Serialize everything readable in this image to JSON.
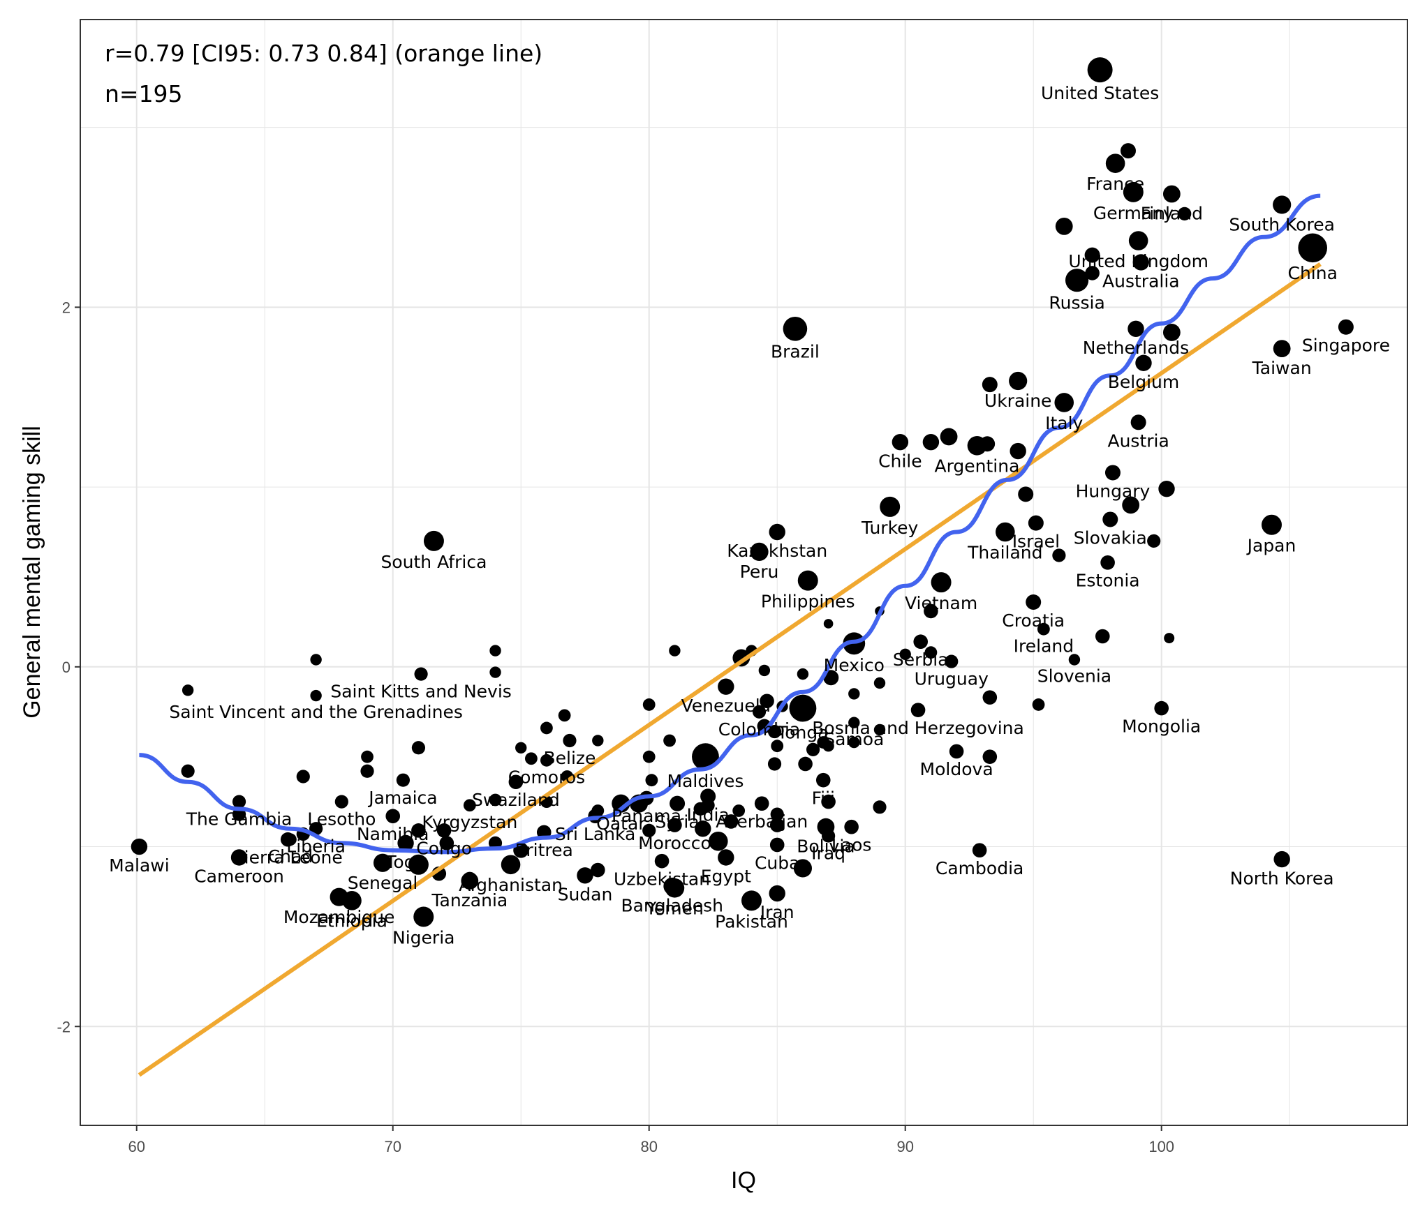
{
  "chart_data": {
    "type": "scatter",
    "title": "",
    "xlabel": "IQ",
    "ylabel": "General mental gaming skill",
    "xlim": [
      57.8,
      109.6
    ],
    "ylim": [
      -2.55,
      3.6
    ],
    "xticks": [
      60,
      70,
      80,
      90,
      100
    ],
    "yticks": [
      -2,
      0,
      2
    ],
    "xtick_labels": [
      "60",
      "70",
      "80",
      "90",
      "100"
    ],
    "ytick_labels": [
      "-2",
      "0",
      "2"
    ],
    "grid": true,
    "annotations": [
      "r=0.79 [CI95: 0.73 0.84] (orange line)",
      "n=195"
    ],
    "colors": {
      "points": "#000000",
      "linear_fit": "#f0a830",
      "loess_fit": "#4263ee",
      "grid": "#e5e5e5",
      "panel_border": "#333333"
    },
    "linear_fit": {
      "x": [
        60.1,
        106.2
      ],
      "y": [
        -2.27,
        2.24
      ]
    },
    "loess_fit": {
      "x": [
        60.1,
        62,
        64,
        66,
        68,
        70,
        72,
        74,
        76,
        78,
        80,
        82,
        84,
        86,
        88,
        90,
        92,
        94,
        96,
        98,
        100,
        102,
        104,
        106.2
      ],
      "y": [
        -0.49,
        -0.64,
        -0.79,
        -0.9,
        -0.98,
        -1.02,
        -1.03,
        -1.01,
        -0.95,
        -0.84,
        -0.72,
        -0.57,
        -0.38,
        -0.14,
        0.14,
        0.45,
        0.75,
        1.04,
        1.33,
        1.62,
        1.91,
        2.16,
        2.39,
        2.62
      ]
    },
    "points": [
      {
        "label": "United States",
        "x": 97.6,
        "y": 3.32,
        "s": 1.0
      },
      {
        "label": "France",
        "x": 98.2,
        "y": 2.8,
        "s": 0.7
      },
      {
        "label": "",
        "x": 98.7,
        "y": 2.87,
        "s": 0.5
      },
      {
        "label": "Germany",
        "x": 98.9,
        "y": 2.64,
        "s": 0.75
      },
      {
        "label": "Finland",
        "x": 100.4,
        "y": 2.63,
        "s": 0.6
      },
      {
        "label": "",
        "x": 100.9,
        "y": 2.52,
        "s": 0.4
      },
      {
        "label": "",
        "x": 96.2,
        "y": 2.45,
        "s": 0.6
      },
      {
        "label": "United Kingdom",
        "x": 99.1,
        "y": 2.37,
        "s": 0.7
      },
      {
        "label": "",
        "x": 97.3,
        "y": 2.29,
        "s": 0.5
      },
      {
        "label": "Australia",
        "x": 99.2,
        "y": 2.25,
        "s": 0.55
      },
      {
        "label": "",
        "x": 97.3,
        "y": 2.19,
        "s": 0.45
      },
      {
        "label": "Russia",
        "x": 96.7,
        "y": 2.15,
        "s": 0.9
      },
      {
        "label": "South Korea",
        "x": 104.7,
        "y": 2.57,
        "s": 0.65
      },
      {
        "label": "China",
        "x": 105.9,
        "y": 2.33,
        "s": 1.2
      },
      {
        "label": "Brazil",
        "x": 85.7,
        "y": 1.88,
        "s": 0.95
      },
      {
        "label": "Netherlands",
        "x": 99.0,
        "y": 1.88,
        "s": 0.55
      },
      {
        "label": "",
        "x": 100.4,
        "y": 1.86,
        "s": 0.6
      },
      {
        "label": "Singapore",
        "x": 107.2,
        "y": 1.89,
        "s": 0.5
      },
      {
        "label": "Taiwan",
        "x": 104.7,
        "y": 1.77,
        "s": 0.6
      },
      {
        "label": "Belgium",
        "x": 99.3,
        "y": 1.69,
        "s": 0.55
      },
      {
        "label": "Ukraine",
        "x": 94.4,
        "y": 1.59,
        "s": 0.65
      },
      {
        "label": "",
        "x": 93.3,
        "y": 1.57,
        "s": 0.5
      },
      {
        "label": "Italy",
        "x": 96.2,
        "y": 1.47,
        "s": 0.7
      },
      {
        "label": "Austria",
        "x": 99.1,
        "y": 1.36,
        "s": 0.5
      },
      {
        "label": "Chile",
        "x": 89.8,
        "y": 1.25,
        "s": 0.55
      },
      {
        "label": "",
        "x": 91.0,
        "y": 1.25,
        "s": 0.55
      },
      {
        "label": "",
        "x": 91.7,
        "y": 1.28,
        "s": 0.6
      },
      {
        "label": "Argentina",
        "x": 92.8,
        "y": 1.23,
        "s": 0.7
      },
      {
        "label": "",
        "x": 93.2,
        "y": 1.24,
        "s": 0.5
      },
      {
        "label": "",
        "x": 94.4,
        "y": 1.2,
        "s": 0.55
      },
      {
        "label": "Hungary",
        "x": 98.1,
        "y": 1.08,
        "s": 0.5
      },
      {
        "label": "",
        "x": 100.2,
        "y": 0.99,
        "s": 0.55
      },
      {
        "label": "",
        "x": 94.7,
        "y": 0.96,
        "s": 0.5
      },
      {
        "label": "Turkey",
        "x": 89.4,
        "y": 0.89,
        "s": 0.75
      },
      {
        "label": "",
        "x": 98.8,
        "y": 0.9,
        "s": 0.6
      },
      {
        "label": "Israel",
        "x": 95.1,
        "y": 0.8,
        "s": 0.5
      },
      {
        "label": "Slovakia",
        "x": 98.0,
        "y": 0.82,
        "s": 0.5
      },
      {
        "label": "Thailand",
        "x": 93.9,
        "y": 0.75,
        "s": 0.7
      },
      {
        "label": "Japan",
        "x": 104.3,
        "y": 0.79,
        "s": 0.75
      },
      {
        "label": "",
        "x": 99.7,
        "y": 0.7,
        "s": 0.4
      },
      {
        "label": "Kazakhstan",
        "x": 85.0,
        "y": 0.75,
        "s": 0.55
      },
      {
        "label": "Peru",
        "x": 84.3,
        "y": 0.64,
        "s": 0.65
      },
      {
        "label": "South Africa",
        "x": 71.6,
        "y": 0.7,
        "s": 0.75
      },
      {
        "label": "",
        "x": 96.0,
        "y": 0.62,
        "s": 0.4
      },
      {
        "label": "Estonia",
        "x": 97.9,
        "y": 0.58,
        "s": 0.45
      },
      {
        "label": "Philippines",
        "x": 86.2,
        "y": 0.48,
        "s": 0.75
      },
      {
        "label": "Vietnam",
        "x": 91.4,
        "y": 0.47,
        "s": 0.75
      },
      {
        "label": "Croatia",
        "x": 95.0,
        "y": 0.36,
        "s": 0.5
      },
      {
        "label": "",
        "x": 91.0,
        "y": 0.31,
        "s": 0.45
      },
      {
        "label": "",
        "x": 89.0,
        "y": 0.31,
        "s": 0.2
      },
      {
        "label": "",
        "x": 87.0,
        "y": 0.24,
        "s": 0.2
      },
      {
        "label": "Ireland",
        "x": 95.4,
        "y": 0.21,
        "s": 0.35
      },
      {
        "label": "Serbia",
        "x": 90.6,
        "y": 0.14,
        "s": 0.45
      },
      {
        "label": "",
        "x": 97.7,
        "y": 0.17,
        "s": 0.45
      },
      {
        "label": "",
        "x": 100.3,
        "y": 0.16,
        "s": 0.25
      },
      {
        "label": "Mexico",
        "x": 88.0,
        "y": 0.13,
        "s": 0.85
      },
      {
        "label": "",
        "x": 91.0,
        "y": 0.08,
        "s": 0.35
      },
      {
        "label": "",
        "x": 90.0,
        "y": 0.07,
        "s": 0.3
      },
      {
        "label": "",
        "x": 84.0,
        "y": 0.09,
        "s": 0.3
      },
      {
        "label": "",
        "x": 81.0,
        "y": 0.09,
        "s": 0.3
      },
      {
        "label": "",
        "x": 74.0,
        "y": 0.09,
        "s": 0.3
      },
      {
        "label": "",
        "x": 67.0,
        "y": 0.04,
        "s": 0.3
      },
      {
        "label": "",
        "x": 83.6,
        "y": 0.05,
        "s": 0.6
      },
      {
        "label": "Uruguay",
        "x": 91.8,
        "y": 0.03,
        "s": 0.4
      },
      {
        "label": "Slovenia",
        "x": 96.6,
        "y": 0.04,
        "s": 0.3
      },
      {
        "label": "",
        "x": 84.5,
        "y": -0.02,
        "s": 0.3
      },
      {
        "label": "Saint Kitts and Nevis",
        "x": 71.1,
        "y": -0.04,
        "s": 0.4
      },
      {
        "label": "",
        "x": 74.0,
        "y": -0.03,
        "s": 0.3
      },
      {
        "label": "",
        "x": 86.0,
        "y": -0.04,
        "s": 0.3
      },
      {
        "label": "",
        "x": 87.1,
        "y": -0.06,
        "s": 0.5
      },
      {
        "label": "Venezuela",
        "x": 83.0,
        "y": -0.11,
        "s": 0.55
      },
      {
        "label": "",
        "x": 89.0,
        "y": -0.09,
        "s": 0.3
      },
      {
        "label": "",
        "x": 62.0,
        "y": -0.13,
        "s": 0.3
      },
      {
        "label": "Saint Vincent and the Grenadines",
        "x": 67.0,
        "y": -0.16,
        "s": 0.3
      },
      {
        "label": "",
        "x": 88.0,
        "y": -0.15,
        "s": 0.3
      },
      {
        "label": "",
        "x": 84.6,
        "y": -0.19,
        "s": 0.45
      },
      {
        "label": "",
        "x": 93.3,
        "y": -0.17,
        "s": 0.45
      },
      {
        "label": "Tonga",
        "x": 86.0,
        "y": -0.23,
        "s": 1.1
      },
      {
        "label": "",
        "x": 80.0,
        "y": -0.21,
        "s": 0.35
      },
      {
        "label": "",
        "x": 85.2,
        "y": -0.22,
        "s": 0.3
      },
      {
        "label": "Colombia",
        "x": 84.3,
        "y": -0.25,
        "s": 0.4
      },
      {
        "label": "",
        "x": 95.2,
        "y": -0.21,
        "s": 0.35
      },
      {
        "label": "Mongolia",
        "x": 100.0,
        "y": -0.23,
        "s": 0.45
      },
      {
        "label": "Bosnia and Herzegovina",
        "x": 90.5,
        "y": -0.24,
        "s": 0.45
      },
      {
        "label": "",
        "x": 76.7,
        "y": -0.27,
        "s": 0.35
      },
      {
        "label": "Samoa",
        "x": 88.0,
        "y": -0.31,
        "s": 0.3
      },
      {
        "label": "",
        "x": 84.5,
        "y": -0.33,
        "s": 0.45
      },
      {
        "label": "",
        "x": 84.9,
        "y": -0.36,
        "s": 0.4
      },
      {
        "label": "",
        "x": 76.0,
        "y": -0.34,
        "s": 0.35
      },
      {
        "label": "",
        "x": 89.0,
        "y": -0.35,
        "s": 0.3
      },
      {
        "label": "Belize",
        "x": 76.9,
        "y": -0.41,
        "s": 0.4
      },
      {
        "label": "",
        "x": 78.0,
        "y": -0.41,
        "s": 0.3
      },
      {
        "label": "",
        "x": 80.8,
        "y": -0.41,
        "s": 0.35
      },
      {
        "label": "Maldives",
        "x": 82.2,
        "y": -0.5,
        "s": 1.1
      },
      {
        "label": "",
        "x": 86.4,
        "y": -0.46,
        "s": 0.4
      },
      {
        "label": "",
        "x": 86.8,
        "y": -0.42,
        "s": 0.35
      },
      {
        "label": "",
        "x": 87.0,
        "y": -0.44,
        "s": 0.3
      },
      {
        "label": "",
        "x": 88.0,
        "y": -0.42,
        "s": 0.3
      },
      {
        "label": "",
        "x": 85.0,
        "y": -0.44,
        "s": 0.35
      },
      {
        "label": "",
        "x": 75.0,
        "y": -0.45,
        "s": 0.3
      },
      {
        "label": "",
        "x": 71.0,
        "y": -0.45,
        "s": 0.4
      },
      {
        "label": "",
        "x": 69.0,
        "y": -0.5,
        "s": 0.35
      },
      {
        "label": "",
        "x": 75.4,
        "y": -0.51,
        "s": 0.35
      },
      {
        "label": "",
        "x": 80.0,
        "y": -0.5,
        "s": 0.35
      },
      {
        "label": "Comoros",
        "x": 76.0,
        "y": -0.52,
        "s": 0.35
      },
      {
        "label": "",
        "x": 84.9,
        "y": -0.54,
        "s": 0.4
      },
      {
        "label": "Moldova",
        "x": 92.0,
        "y": -0.47,
        "s": 0.45
      },
      {
        "label": "",
        "x": 93.3,
        "y": -0.5,
        "s": 0.45
      },
      {
        "label": "",
        "x": 86.1,
        "y": -0.54,
        "s": 0.45
      },
      {
        "label": "",
        "x": 69.0,
        "y": -0.58,
        "s": 0.4
      },
      {
        "label": "",
        "x": 66.5,
        "y": -0.61,
        "s": 0.4
      },
      {
        "label": "Jamaica",
        "x": 70.4,
        "y": -0.63,
        "s": 0.4
      },
      {
        "label": "",
        "x": 76.8,
        "y": -0.61,
        "s": 0.35
      },
      {
        "label": "",
        "x": 62.0,
        "y": -0.58,
        "s": 0.4
      },
      {
        "label": "Swaziland",
        "x": 74.8,
        "y": -0.64,
        "s": 0.45
      },
      {
        "label": "",
        "x": 80.1,
        "y": -0.63,
        "s": 0.35
      },
      {
        "label": "Fiji",
        "x": 86.8,
        "y": -0.63,
        "s": 0.45
      },
      {
        "label": "Panama",
        "x": 79.9,
        "y": -0.73,
        "s": 0.45
      },
      {
        "label": "India",
        "x": 82.3,
        "y": -0.72,
        "s": 0.5
      },
      {
        "label": "Azerbaijan",
        "x": 84.4,
        "y": -0.76,
        "s": 0.45
      },
      {
        "label": "Qatar",
        "x": 78.9,
        "y": -0.76,
        "s": 0.65
      },
      {
        "label": "",
        "x": 79.6,
        "y": -0.76,
        "s": 0.65
      },
      {
        "label": "Syria",
        "x": 81.1,
        "y": -0.76,
        "s": 0.5
      },
      {
        "label": "",
        "x": 82.3,
        "y": -0.77,
        "s": 0.4
      },
      {
        "label": "Lesotho",
        "x": 68.0,
        "y": -0.75,
        "s": 0.4
      },
      {
        "label": "The Gambia",
        "x": 64.0,
        "y": -0.75,
        "s": 0.4
      },
      {
        "label": "Namibia",
        "x": 70.0,
        "y": -0.83,
        "s": 0.45
      },
      {
        "label": "Kyrgyzstan",
        "x": 73.0,
        "y": -0.77,
        "s": 0.35
      },
      {
        "label": "",
        "x": 74.0,
        "y": -0.74,
        "s": 0.35
      },
      {
        "label": "",
        "x": 76.0,
        "y": -0.75,
        "s": 0.35
      },
      {
        "label": "",
        "x": 78.0,
        "y": -0.8,
        "s": 0.35
      },
      {
        "label": "",
        "x": 82.0,
        "y": -0.79,
        "s": 0.4
      },
      {
        "label": "",
        "x": 83.5,
        "y": -0.8,
        "s": 0.35
      },
      {
        "label": "",
        "x": 85.0,
        "y": -0.82,
        "s": 0.4
      },
      {
        "label": "",
        "x": 87.0,
        "y": -0.75,
        "s": 0.45
      },
      {
        "label": "",
        "x": 89.0,
        "y": -0.78,
        "s": 0.4
      },
      {
        "label": "",
        "x": 64.0,
        "y": -0.82,
        "s": 0.4
      },
      {
        "label": "Sri Lanka",
        "x": 77.9,
        "y": -0.83,
        "s": 0.45
      },
      {
        "label": "Morocco",
        "x": 81.0,
        "y": -0.88,
        "s": 0.45
      },
      {
        "label": "",
        "x": 82.1,
        "y": -0.9,
        "s": 0.55
      },
      {
        "label": "",
        "x": 83.2,
        "y": -0.86,
        "s": 0.45
      },
      {
        "label": "",
        "x": 85.0,
        "y": -0.88,
        "s": 0.45
      },
      {
        "label": "Bolivia",
        "x": 86.9,
        "y": -0.89,
        "s": 0.6
      },
      {
        "label": "Laos",
        "x": 87.9,
        "y": -0.89,
        "s": 0.45
      },
      {
        "label": "",
        "x": 80.0,
        "y": -0.91,
        "s": 0.4
      },
      {
        "label": "",
        "x": 71.0,
        "y": -0.91,
        "s": 0.45
      },
      {
        "label": "Liberia",
        "x": 67.0,
        "y": -0.9,
        "s": 0.4
      },
      {
        "label": "",
        "x": 66.5,
        "y": -0.93,
        "s": 0.4
      },
      {
        "label": "Congo",
        "x": 72.0,
        "y": -0.91,
        "s": 0.45
      },
      {
        "label": "Eritrea",
        "x": 75.9,
        "y": -0.92,
        "s": 0.45
      },
      {
        "label": "Sierra Leone",
        "x": 65.9,
        "y": -0.96,
        "s": 0.45
      },
      {
        "label": "Togo",
        "x": 70.5,
        "y": -0.98,
        "s": 0.55
      },
      {
        "label": "",
        "x": 72.1,
        "y": -0.98,
        "s": 0.45
      },
      {
        "label": "",
        "x": 74.0,
        "y": -0.98,
        "s": 0.4
      },
      {
        "label": "Iraq",
        "x": 87.0,
        "y": -0.94,
        "s": 0.4
      },
      {
        "label": "",
        "x": 82.7,
        "y": -0.97,
        "s": 0.7
      },
      {
        "label": "Cuba",
        "x": 85.0,
        "y": -0.99,
        "s": 0.45
      },
      {
        "label": "Malawi",
        "x": 60.1,
        "y": -1.0,
        "s": 0.55
      },
      {
        "label": "Cameroon",
        "x": 64.0,
        "y": -1.06,
        "s": 0.55
      },
      {
        "label": "Chad",
        "x": 66.0,
        "y": -0.96,
        "s": 0.35
      },
      {
        "label": "",
        "x": 75.0,
        "y": -1.02,
        "s": 0.5
      },
      {
        "label": "Senegal",
        "x": 69.6,
        "y": -1.09,
        "s": 0.65
      },
      {
        "label": "",
        "x": 71.0,
        "y": -1.1,
        "s": 0.75
      },
      {
        "label": "",
        "x": 71.8,
        "y": -1.15,
        "s": 0.45
      },
      {
        "label": "Afghanistan",
        "x": 74.6,
        "y": -1.1,
        "s": 0.7
      },
      {
        "label": "Uzbekistan",
        "x": 80.5,
        "y": -1.08,
        "s": 0.45
      },
      {
        "label": "Egypt",
        "x": 83.0,
        "y": -1.06,
        "s": 0.55
      },
      {
        "label": "",
        "x": 86.0,
        "y": -1.12,
        "s": 0.65
      },
      {
        "label": "Cambodia",
        "x": 92.9,
        "y": -1.02,
        "s": 0.45
      },
      {
        "label": "North Korea",
        "x": 104.7,
        "y": -1.07,
        "s": 0.55
      },
      {
        "label": "Sudan",
        "x": 77.5,
        "y": -1.16,
        "s": 0.55
      },
      {
        "label": "",
        "x": 78.0,
        "y": -1.13,
        "s": 0.45
      },
      {
        "label": "Tanzania",
        "x": 73.0,
        "y": -1.19,
        "s": 0.6
      },
      {
        "label": "Yemen",
        "x": 81.0,
        "y": -1.23,
        "s": 0.7
      },
      {
        "label": "Iran",
        "x": 85.0,
        "y": -1.26,
        "s": 0.55
      },
      {
        "label": "Mozambique",
        "x": 67.9,
        "y": -1.28,
        "s": 0.65
      },
      {
        "label": "Ethiopia",
        "x": 68.4,
        "y": -1.3,
        "s": 0.7
      },
      {
        "label": "Nigeria",
        "x": 71.2,
        "y": -1.39,
        "s": 0.75
      },
      {
        "label": "Bangladesh",
        "x": 80.9,
        "y": -1.22,
        "s": 0.6
      },
      {
        "label": "Pakistan",
        "x": 84.0,
        "y": -1.3,
        "s": 0.75
      },
      {
        "label": "",
        "x": 73.0,
        "y": -1.18,
        "s": 0.45
      }
    ]
  }
}
